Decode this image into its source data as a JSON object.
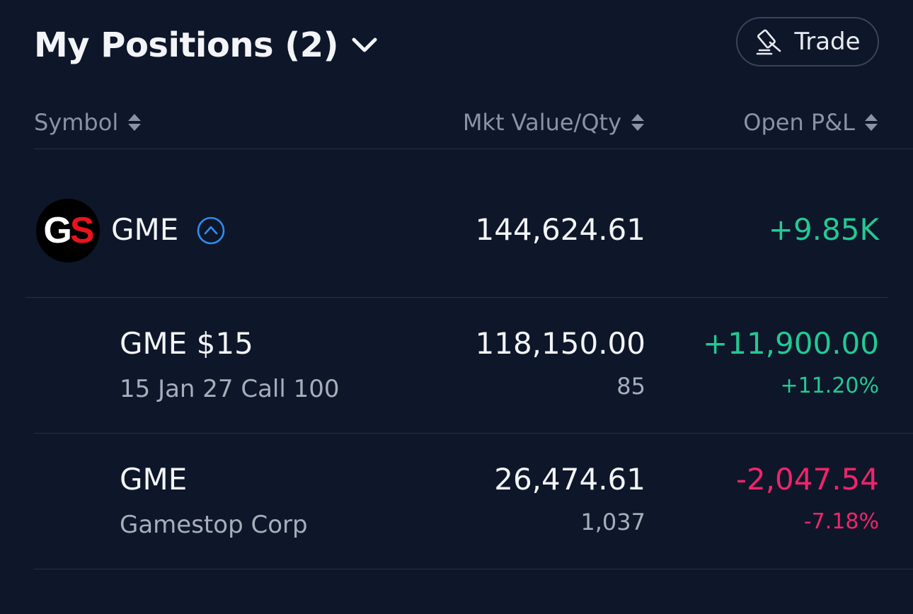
{
  "header": {
    "title": "My Positions (2)",
    "title_icon": "chevron-down-icon",
    "trade_label": "Trade",
    "trade_icon": "gavel-icon"
  },
  "columns": {
    "symbol": "Symbol",
    "mkt_value_qty": "Mkt Value/Qty",
    "open_pnl": "Open P&L",
    "sort_icon": "sort-icon"
  },
  "group": {
    "logo_text_left": "G",
    "logo_text_right": "S",
    "symbol": "GME",
    "toggle_icon": "chevron-up-circle-icon",
    "mkt_value": "144,624.61",
    "open_pnl": "+9.85K"
  },
  "positions": [
    {
      "symbol": "GME $15",
      "description": "15 Jan 27 Call 100",
      "mkt_value": "118,150.00",
      "qty": "85",
      "open_pnl": "+11,900.00",
      "open_pnl_pct": "+11.20%",
      "direction": "up"
    },
    {
      "symbol": "GME",
      "description": "Gamestop Corp",
      "mkt_value": "26,474.61",
      "qty": "1,037",
      "open_pnl": "-2,047.54",
      "open_pnl_pct": "-7.18%",
      "direction": "down"
    }
  ],
  "colors": {
    "background": "#0e1629",
    "positive": "#22c993",
    "negative": "#f0246c",
    "accent_blue": "#2f8cf0",
    "muted_text": "#8a93a5",
    "divider": "#263046"
  }
}
